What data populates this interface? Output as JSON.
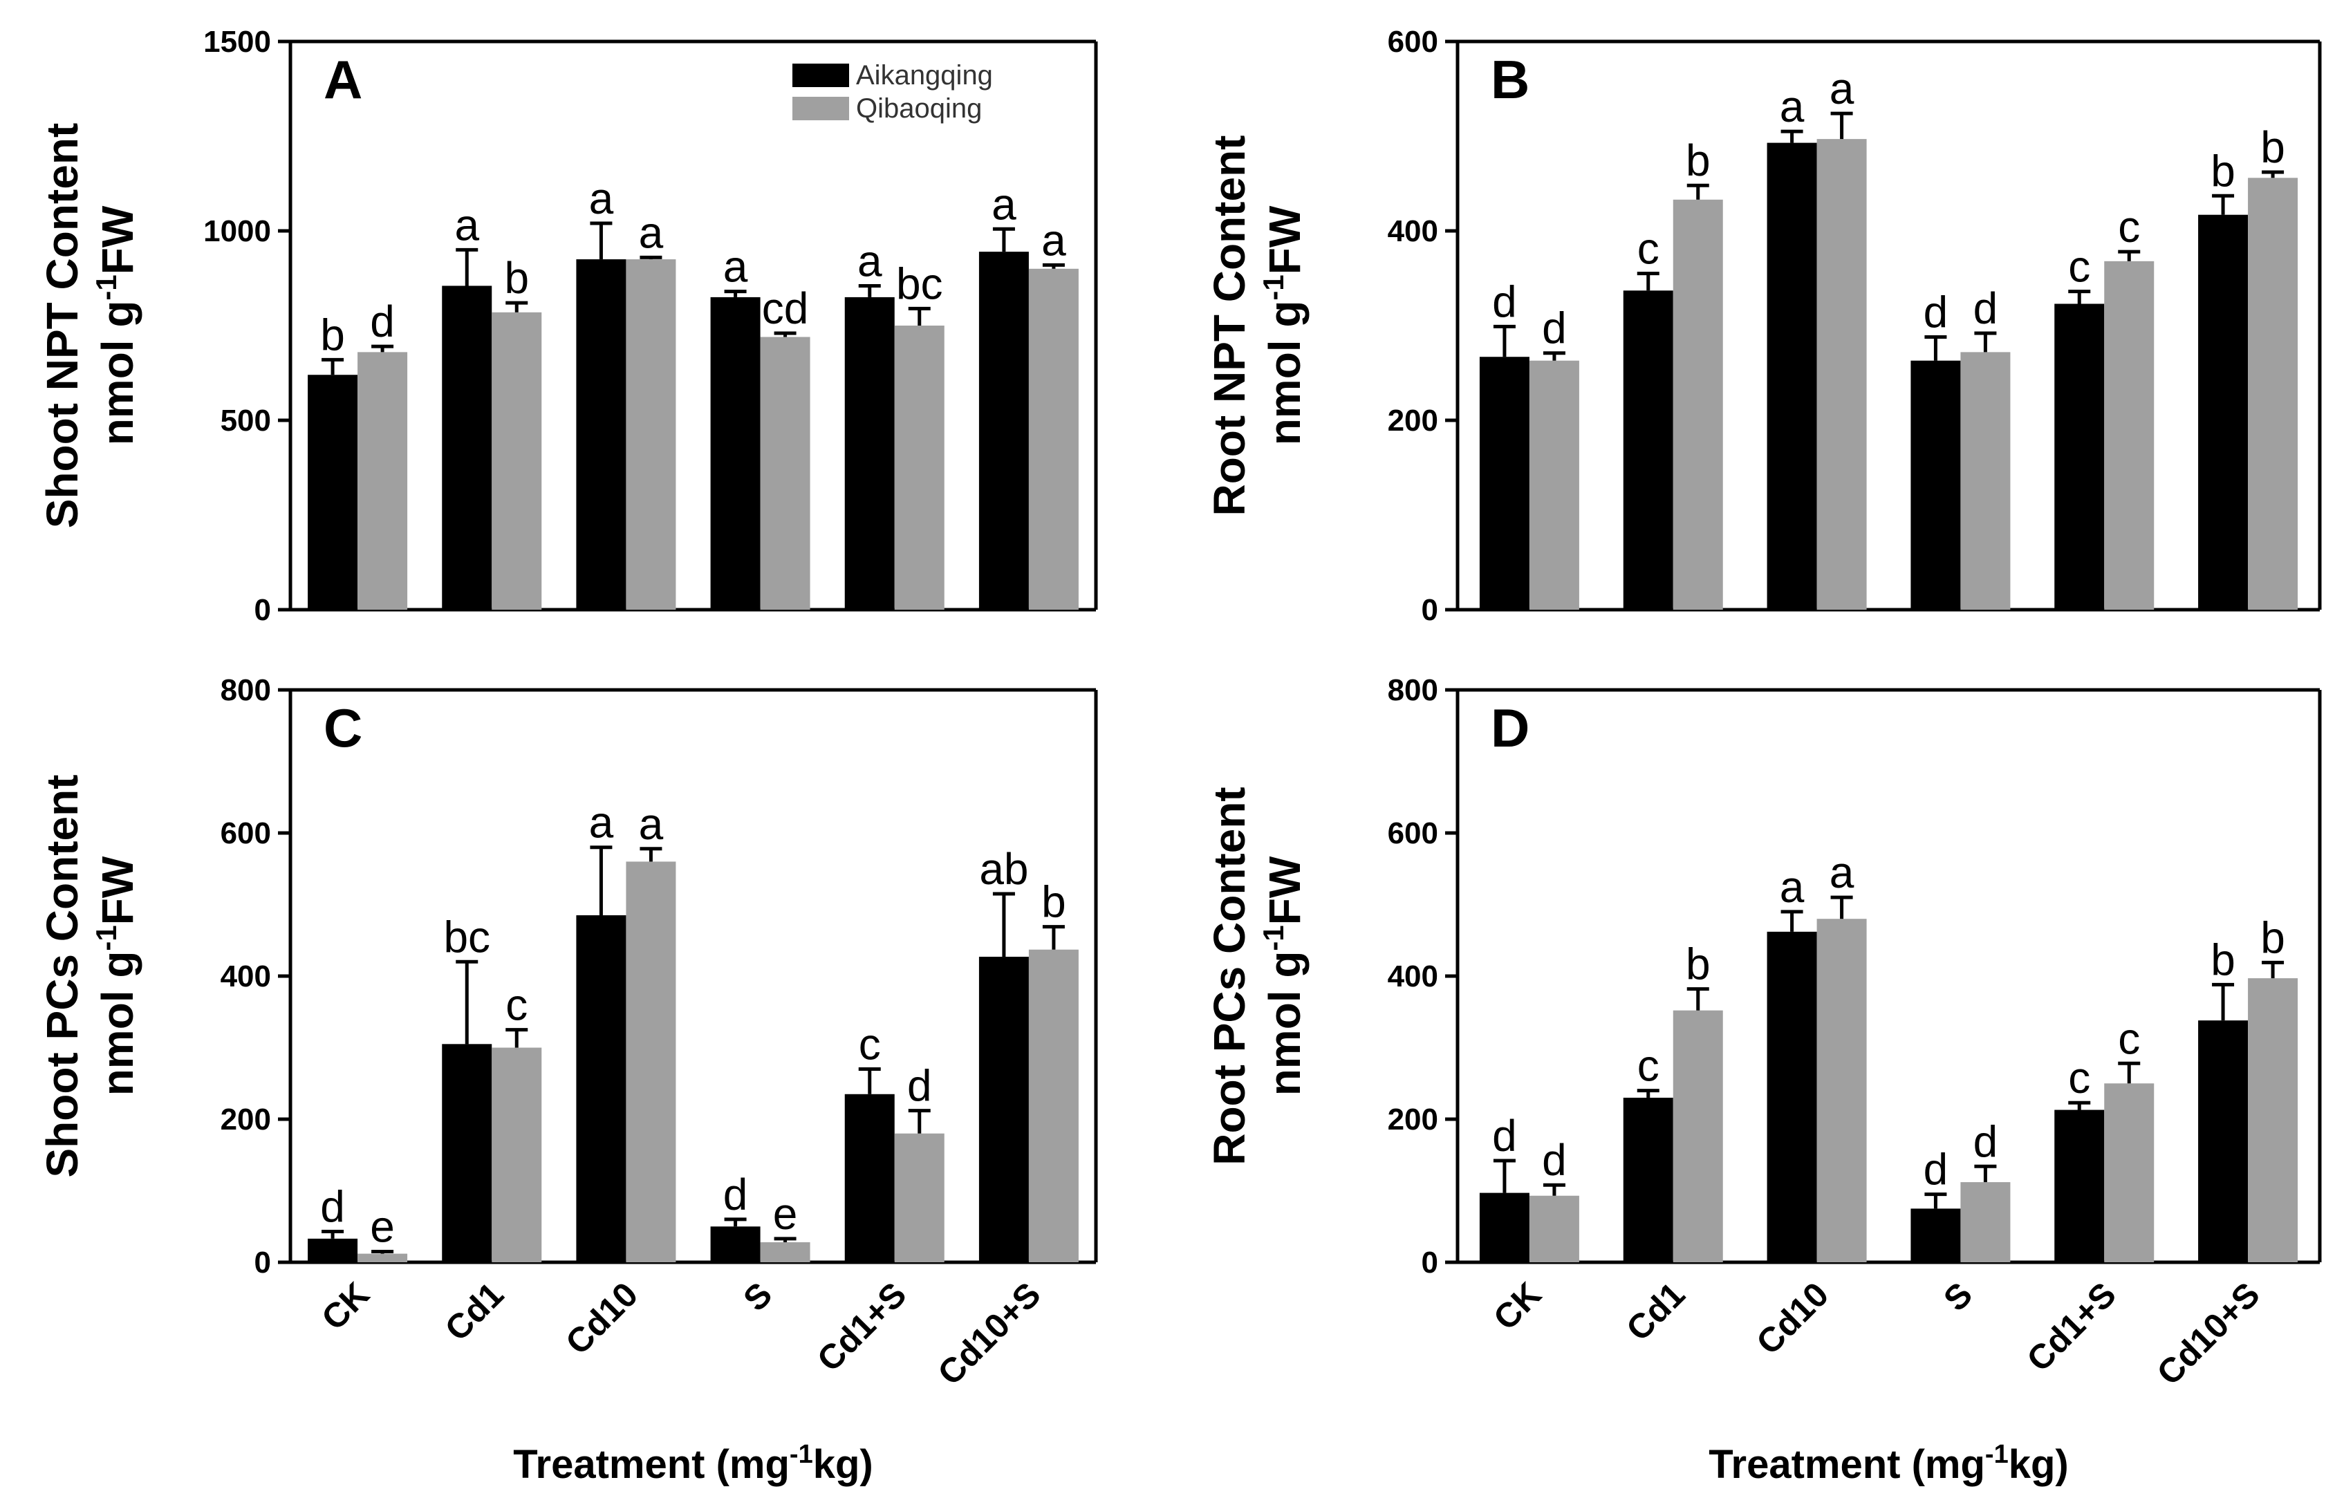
{
  "chart_data": [
    {
      "type": "bar",
      "panel": "A",
      "ylabel": "Shoot NPT Content",
      "yunit": "nmol g-1FW",
      "ylim": [
        0,
        1500
      ],
      "yticks": [
        0,
        500,
        1000,
        1500
      ],
      "categories": [
        "CK",
        "Cd1",
        "Cd10",
        "S",
        "Cd1+S",
        "Cd10+S"
      ],
      "series": [
        {
          "name": "Aikangqing",
          "color": "#000000",
          "values": [
            620,
            855,
            925,
            825,
            825,
            945
          ],
          "errors": [
            40,
            95,
            95,
            15,
            30,
            60
          ],
          "letters": [
            "b",
            "a",
            "a",
            "a",
            "a",
            "a"
          ]
        },
        {
          "name": "Qibaoqing",
          "color": "#a0a0a0",
          "values": [
            680,
            785,
            925,
            720,
            750,
            900
          ],
          "errors": [
            15,
            25,
            5,
            10,
            45,
            10
          ],
          "letters": [
            "d",
            "b",
            "a",
            "cd",
            "bc",
            "a"
          ]
        }
      ],
      "legend": "top-center"
    },
    {
      "type": "bar",
      "panel": "B",
      "ylabel": "Root NPT Content",
      "yunit": "nmol g-1FW",
      "ylim": [
        0,
        600
      ],
      "yticks": [
        0,
        200,
        400,
        600
      ],
      "categories": [
        "CK",
        "Cd1",
        "Cd10",
        "S",
        "Cd1+S",
        "Cd10+S"
      ],
      "series": [
        {
          "name": "Aikangqing",
          "color": "#000000",
          "values": [
            267,
            337,
            493,
            263,
            323,
            417
          ],
          "errors": [
            32,
            18,
            12,
            25,
            13,
            20
          ],
          "letters": [
            "d",
            "c",
            "a",
            "d",
            "c",
            "b"
          ]
        },
        {
          "name": "Qibaoqing",
          "color": "#a0a0a0",
          "values": [
            263,
            433,
            497,
            272,
            368,
            456
          ],
          "errors": [
            8,
            15,
            27,
            20,
            10,
            6
          ],
          "letters": [
            "d",
            "b",
            "a",
            "d",
            "c",
            "b"
          ]
        }
      ]
    },
    {
      "type": "bar",
      "panel": "C",
      "ylabel": "Shoot PCs Content",
      "yunit": "nmol g-1FW",
      "ylim": [
        0,
        800
      ],
      "yticks": [
        0,
        200,
        400,
        600,
        800
      ],
      "categories": [
        "CK",
        "Cd1",
        "Cd10",
        "S",
        "Cd1+S",
        "Cd10+S"
      ],
      "series": [
        {
          "name": "Aikangqing",
          "color": "#000000",
          "values": [
            33,
            305,
            485,
            50,
            235,
            427
          ],
          "errors": [
            10,
            115,
            95,
            10,
            35,
            88
          ],
          "letters": [
            "d",
            "bc",
            "a",
            "d",
            "c",
            "ab"
          ]
        },
        {
          "name": "Qibaoqing",
          "color": "#a0a0a0",
          "values": [
            12,
            300,
            560,
            28,
            180,
            437
          ],
          "errors": [
            3,
            25,
            18,
            5,
            32,
            32
          ],
          "letters": [
            "e",
            "c",
            "a",
            "e",
            "d",
            "b"
          ]
        }
      ],
      "xlabel": "Treatment (mg-1kg)"
    },
    {
      "type": "bar",
      "panel": "D",
      "ylabel": "Root PCs Content",
      "yunit": "nmol g-1FW",
      "ylim": [
        0,
        800
      ],
      "yticks": [
        0,
        200,
        400,
        600,
        800
      ],
      "categories": [
        "CK",
        "Cd1",
        "Cd10",
        "S",
        "Cd1+S",
        "Cd10+S"
      ],
      "series": [
        {
          "name": "Aikangqing",
          "color": "#000000",
          "values": [
            97,
            230,
            462,
            75,
            213,
            338
          ],
          "errors": [
            45,
            10,
            28,
            20,
            10,
            50
          ],
          "letters": [
            "d",
            "c",
            "a",
            "d",
            "c",
            "b"
          ]
        },
        {
          "name": "Qibaoqing",
          "color": "#a0a0a0",
          "values": [
            93,
            352,
            480,
            112,
            250,
            397
          ],
          "errors": [
            15,
            30,
            30,
            22,
            28,
            22
          ],
          "letters": [
            "d",
            "b",
            "a",
            "d",
            "c",
            "b"
          ]
        }
      ],
      "xlabel": "Treatment (mg-1kg)"
    }
  ]
}
